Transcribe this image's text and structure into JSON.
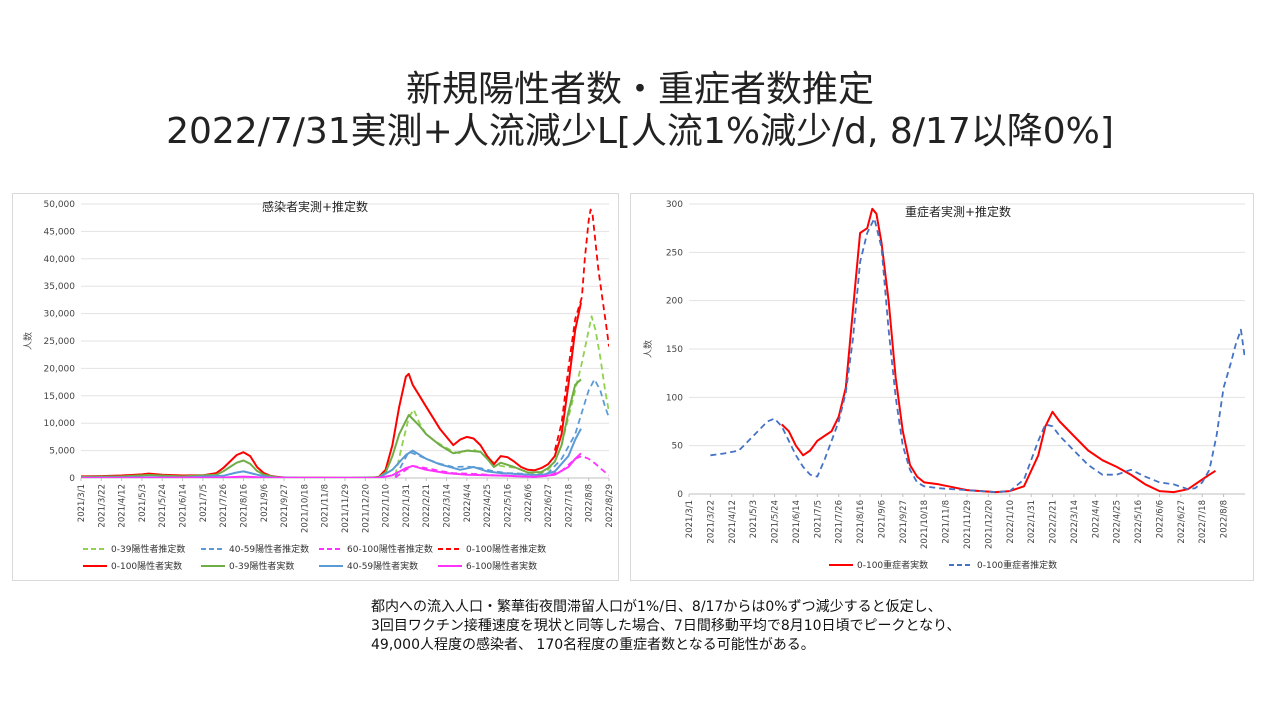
{
  "title_line1": "新規陽性者数・重症者数推定",
  "title_line2": "2022/7/31実測+人流減少L[人流1%減少/d, 8/17以降0%]",
  "note_lines": [
    "都内への流入人口・繁華街夜間滞留人口が1%/日、8/17からは0%ずつ減少すると仮定し、",
    "3回目ワクチン接種速度を現状と同等した場合、7日間移動平均で8月10日頃でピークとなり、",
    "49,000人程度の感染者、 170名程度の重症者数となる可能性がある。"
  ],
  "chart_data": [
    {
      "type": "line",
      "title": "感染者実測+推定数",
      "ylabel": "人数",
      "ylim": [
        0,
        50000
      ],
      "yticks": [
        "0",
        "5,000",
        "10,000",
        "15,000",
        "20,000",
        "25,000",
        "30,000",
        "35,000",
        "40,000",
        "45,000",
        "50,000"
      ],
      "xlim": [
        "2021/3/1",
        "2022/8/29"
      ],
      "xticks": [
        "2021/3/1",
        "2021/3/22",
        "2021/4/12",
        "2021/5/3",
        "2021/5/24",
        "2021/6/14",
        "2021/7/5",
        "2021/7/26",
        "2021/8/16",
        "2021/9/6",
        "2021/9/27",
        "2021/10/18",
        "2021/11/8",
        "2021/11/29",
        "2021/12/20",
        "2022/1/10",
        "2022/1/31",
        "2022/2/21",
        "2022/3/14",
        "2022/4/4",
        "2022/4/25",
        "2022/5/16",
        "2022/6/6",
        "2022/6/27",
        "2022/7/18",
        "2022/8/8",
        "2022/8/29"
      ],
      "series": [
        {
          "name": "0-39陽性者推定数",
          "color": "#92d050",
          "dash": true,
          "x": [
            "2022/1/20",
            "2022/1/27",
            "2022/2/3",
            "2022/2/8",
            "2022/2/14",
            "2022/2/21",
            "2022/2/28",
            "2022/3/7",
            "2022/3/14",
            "2022/3/21",
            "2022/3/28",
            "2022/4/4",
            "2022/4/11",
            "2022/4/18",
            "2022/4/25",
            "2022/5/2",
            "2022/5/9",
            "2022/5/16",
            "2022/5/23",
            "2022/5/30",
            "2022/6/6",
            "2022/6/13",
            "2022/6/20",
            "2022/6/27",
            "2022/7/4",
            "2022/7/11",
            "2022/7/18",
            "2022/7/25",
            "2022/8/1",
            "2022/8/8",
            "2022/8/11",
            "2022/8/15",
            "2022/8/20",
            "2022/8/25",
            "2022/8/29"
          ],
          "values": [
            500,
            6000,
            11000,
            12500,
            10000,
            8000,
            7000,
            6200,
            5500,
            4800,
            4500,
            5000,
            5200,
            4600,
            3800,
            2800,
            2200,
            2000,
            1900,
            1500,
            1000,
            800,
            900,
            1500,
            3000,
            6000,
            11000,
            16000,
            21000,
            27000,
            29500,
            27000,
            22000,
            16000,
            12000
          ]
        },
        {
          "name": "40-59陽性者推定数",
          "color": "#5b9bd5",
          "dash": true,
          "x": [
            "2022/1/20",
            "2022/1/27",
            "2022/2/3",
            "2022/2/10",
            "2022/2/21",
            "2022/3/7",
            "2022/3/21",
            "2022/4/4",
            "2022/4/18",
            "2022/5/2",
            "2022/5/16",
            "2022/5/30",
            "2022/6/13",
            "2022/6/27",
            "2022/7/11",
            "2022/7/25",
            "2022/8/1",
            "2022/8/8",
            "2022/8/14",
            "2022/8/20",
            "2022/8/25",
            "2022/8/29"
          ],
          "values": [
            200,
            2500,
            4800,
            4300,
            3500,
            2600,
            2000,
            2100,
            1800,
            1200,
            900,
            800,
            500,
            900,
            3500,
            8000,
            12000,
            16000,
            18000,
            16000,
            13000,
            11000
          ]
        },
        {
          "name": "60-100陽性者推定数",
          "color": "#ff33ff",
          "dash": true,
          "x": [
            "2022/1/20",
            "2022/1/31",
            "2022/2/7",
            "2022/2/21",
            "2022/3/7",
            "2022/3/21",
            "2022/4/4",
            "2022/4/18",
            "2022/5/2",
            "2022/5/16",
            "2022/5/30",
            "2022/6/13",
            "2022/6/27",
            "2022/7/11",
            "2022/7/25",
            "2022/8/1",
            "2022/8/8",
            "2022/8/15",
            "2022/8/22",
            "2022/8/29"
          ],
          "values": [
            100,
            1500,
            2200,
            1800,
            1300,
            900,
            800,
            700,
            500,
            400,
            300,
            200,
            400,
            1300,
            3500,
            4000,
            3500,
            2600,
            1500,
            500
          ]
        },
        {
          "name": "0-100陽性者推定数",
          "color": "#ff0000",
          "dash": true,
          "x": [
            "2022/7/4",
            "2022/7/11",
            "2022/7/18",
            "2022/7/25",
            "2022/8/1",
            "2022/8/4",
            "2022/8/8",
            "2022/8/10",
            "2022/8/12",
            "2022/8/15",
            "2022/8/18",
            "2022/8/22",
            "2022/8/26",
            "2022/8/29"
          ],
          "values": [
            5000,
            10000,
            20000,
            29000,
            33000,
            40000,
            47000,
            49000,
            48000,
            43000,
            38000,
            33000,
            28000,
            24000
          ]
        },
        {
          "name": "0-100陽性者実数",
          "color": "#ff0000",
          "dash": false,
          "x": [
            "2021/3/1",
            "2021/3/22",
            "2021/4/12",
            "2021/5/3",
            "2021/5/10",
            "2021/5/24",
            "2021/6/14",
            "2021/7/5",
            "2021/7/19",
            "2021/7/26",
            "2021/8/2",
            "2021/8/9",
            "2021/8/16",
            "2021/8/23",
            "2021/8/30",
            "2021/9/6",
            "2021/9/13",
            "2021/9/20",
            "2021/9/27",
            "2021/10/11",
            "2021/11/1",
            "2021/12/1",
            "2021/12/27",
            "2022/1/3",
            "2022/1/10",
            "2022/1/17",
            "2022/1/24",
            "2022/1/31",
            "2022/2/3",
            "2022/2/7",
            "2022/2/14",
            "2022/2/21",
            "2022/2/28",
            "2022/3/7",
            "2022/3/14",
            "2022/3/21",
            "2022/3/28",
            "2022/4/4",
            "2022/4/11",
            "2022/4/18",
            "2022/4/25",
            "2022/5/2",
            "2022/5/9",
            "2022/5/16",
            "2022/5/23",
            "2022/5/30",
            "2022/6/6",
            "2022/6/13",
            "2022/6/20",
            "2022/6/27",
            "2022/7/4",
            "2022/7/11",
            "2022/7/18",
            "2022/7/25",
            "2022/7/31"
          ],
          "values": [
            300,
            350,
            450,
            650,
            800,
            600,
            450,
            500,
            900,
            1800,
            3000,
            4200,
            4700,
            4000,
            2000,
            900,
            400,
            200,
            100,
            50,
            30,
            20,
            50,
            200,
            1500,
            6000,
            13000,
            18500,
            19000,
            17000,
            15000,
            13000,
            11000,
            9000,
            7500,
            6000,
            7000,
            7500,
            7200,
            6000,
            4000,
            2500,
            4000,
            3800,
            3000,
            2000,
            1500,
            1400,
            1800,
            2500,
            4000,
            8000,
            17000,
            27000,
            32000
          ]
        },
        {
          "name": "0-39陽性者実数",
          "color": "#70ad47",
          "dash": false,
          "x": [
            "2021/3/1",
            "2021/4/12",
            "2021/5/10",
            "2021/6/14",
            "2021/7/19",
            "2021/7/26",
            "2021/8/2",
            "2021/8/9",
            "2021/8/16",
            "2021/8/23",
            "2021/8/30",
            "2021/9/6",
            "2021/9/20",
            "2021/10/11",
            "2021/12/1",
            "2022/1/3",
            "2022/1/10",
            "2022/1/17",
            "2022/1/24",
            "2022/2/3",
            "2022/2/14",
            "2022/2/21",
            "2022/3/7",
            "2022/3/21",
            "2022/4/4",
            "2022/4/18",
            "2022/4/25",
            "2022/5/2",
            "2022/5/9",
            "2022/5/23",
            "2022/6/6",
            "2022/6/20",
            "2022/6/27",
            "2022/7/4",
            "2022/7/11",
            "2022/7/18",
            "2022/7/25",
            "2022/7/31"
          ],
          "values": [
            200,
            300,
            550,
            300,
            600,
            1200,
            2000,
            2800,
            3200,
            2600,
            1300,
            600,
            150,
            30,
            15,
            150,
            1000,
            4000,
            8000,
            11500,
            9500,
            8000,
            6000,
            4500,
            5000,
            4800,
            3500,
            2000,
            2800,
            2000,
            1000,
            1100,
            1800,
            3000,
            6000,
            12000,
            17000,
            18000
          ]
        },
        {
          "name": "40-59陽性者実数",
          "color": "#5b9bd5",
          "dash": false,
          "x": [
            "2021/3/1",
            "2021/5/10",
            "2021/6/14",
            "2021/7/26",
            "2021/8/9",
            "2021/8/16",
            "2021/8/30",
            "2021/9/13",
            "2021/10/11",
            "2022/1/3",
            "2022/1/17",
            "2022/1/31",
            "2022/2/7",
            "2022/2/21",
            "2022/3/7",
            "2022/3/28",
            "2022/4/11",
            "2022/4/25",
            "2022/5/9",
            "2022/5/30",
            "2022/6/20",
            "2022/7/4",
            "2022/7/18",
            "2022/7/25",
            "2022/7/31"
          ],
          "values": [
            50,
            150,
            100,
            400,
            1000,
            1200,
            600,
            100,
            20,
            50,
            1500,
            4200,
            5000,
            3500,
            2500,
            1500,
            2000,
            1200,
            900,
            700,
            500,
            1200,
            4000,
            7000,
            9000
          ]
        },
        {
          "name": "6-100陽性者実数",
          "color": "#ff33ff",
          "dash": false,
          "x": [
            "2021/3/1",
            "2021/5/10",
            "2021/7/26",
            "2021/8/16",
            "2021/9/6",
            "2021/10/11",
            "2022/1/3",
            "2022/1/17",
            "2022/1/31",
            "2022/2/7",
            "2022/2/21",
            "2022/3/14",
            "2022/4/4",
            "2022/4/25",
            "2022/5/16",
            "2022/6/13",
            "2022/7/4",
            "2022/7/18",
            "2022/7/25",
            "2022/7/31"
          ],
          "values": [
            20,
            40,
            100,
            250,
            80,
            10,
            20,
            500,
            1800,
            2200,
            1500,
            900,
            600,
            500,
            400,
            200,
            600,
            2000,
            3500,
            4500
          ]
        }
      ]
    },
    {
      "type": "line",
      "title": "重症者実測+推定数",
      "ylabel": "人数",
      "ylim": [
        0,
        300
      ],
      "yticks": [
        "0",
        "50",
        "100",
        "150",
        "200",
        "250",
        "300"
      ],
      "xlim": [
        "2021/3/1",
        "2022/8/29"
      ],
      "xticks": [
        "2021/3/1",
        "2021/3/22",
        "2021/4/12",
        "2021/5/3",
        "2021/5/24",
        "2021/6/14",
        "2021/7/5",
        "2021/7/26",
        "2021/8/16",
        "2021/9/6",
        "2021/9/27",
        "2021/10/18",
        "2021/11/8",
        "2021/11/29",
        "2021/12/20",
        "2022/1/10",
        "2022/1/31",
        "2022/2/21",
        "2022/3/14",
        "2022/4/4",
        "2022/4/25",
        "2022/5/16",
        "2022/6/6",
        "2022/6/27",
        "2022/7/18",
        "2022/8/8"
      ],
      "series": [
        {
          "name": "0-100重症者実数",
          "color": "#ff0000",
          "dash": false,
          "x": [
            "2021/5/31",
            "2021/6/7",
            "2021/6/14",
            "2021/6/21",
            "2021/6/28",
            "2021/7/5",
            "2021/7/12",
            "2021/7/19",
            "2021/7/26",
            "2021/8/2",
            "2021/8/9",
            "2021/8/16",
            "2021/8/23",
            "2021/8/28",
            "2021/9/1",
            "2021/9/6",
            "2021/9/13",
            "2021/9/20",
            "2021/9/27",
            "2021/10/4",
            "2021/10/11",
            "2021/10/18",
            "2021/11/1",
            "2021/11/15",
            "2021/11/29",
            "2021/12/13",
            "2021/12/27",
            "2022/1/10",
            "2022/1/24",
            "2022/2/7",
            "2022/2/14",
            "2022/2/21",
            "2022/2/28",
            "2022/3/14",
            "2022/3/28",
            "2022/4/11",
            "2022/4/25",
            "2022/5/9",
            "2022/5/23",
            "2022/6/6",
            "2022/6/20",
            "2022/7/4",
            "2022/7/11",
            "2022/7/18",
            "2022/7/25",
            "2022/7/31"
          ],
          "values": [
            72,
            65,
            50,
            40,
            45,
            55,
            60,
            65,
            80,
            110,
            190,
            270,
            275,
            295,
            290,
            260,
            200,
            120,
            65,
            30,
            18,
            12,
            10,
            7,
            4,
            3,
            2,
            3,
            8,
            40,
            70,
            85,
            75,
            60,
            45,
            35,
            28,
            20,
            10,
            3,
            2,
            5,
            10,
            15,
            20,
            24
          ]
        },
        {
          "name": "0-100重症者推定数",
          "color": "#4472c4",
          "dash": true,
          "x": [
            "2021/3/22",
            "2021/4/5",
            "2021/4/19",
            "2021/5/3",
            "2021/5/17",
            "2021/5/24",
            "2021/5/31",
            "2021/6/7",
            "2021/6/14",
            "2021/6/21",
            "2021/6/28",
            "2021/7/5",
            "2021/7/12",
            "2021/7/19",
            "2021/7/26",
            "2021/8/2",
            "2021/8/9",
            "2021/8/16",
            "2021/8/23",
            "2021/8/30",
            "2021/9/6",
            "2021/9/13",
            "2021/9/20",
            "2021/9/27",
            "2021/10/4",
            "2021/10/11",
            "2021/10/18",
            "2021/11/1",
            "2021/11/15",
            "2021/11/29",
            "2021/12/13",
            "2021/12/27",
            "2022/1/10",
            "2022/1/24",
            "2022/2/7",
            "2022/2/14",
            "2022/2/21",
            "2022/2/28",
            "2022/3/14",
            "2022/3/28",
            "2022/4/11",
            "2022/4/25",
            "2022/5/9",
            "2022/5/23",
            "2022/6/6",
            "2022/6/20",
            "2022/7/4",
            "2022/7/11",
            "2022/7/18",
            "2022/7/25",
            "2022/8/1",
            "2022/8/8",
            "2022/8/15",
            "2022/8/20",
            "2022/8/25",
            "2022/8/29"
          ],
          "values": [
            40,
            42,
            45,
            60,
            75,
            78,
            70,
            55,
            40,
            28,
            20,
            18,
            35,
            55,
            75,
            105,
            160,
            240,
            270,
            285,
            255,
            170,
            100,
            50,
            25,
            12,
            8,
            6,
            5,
            4,
            3,
            2,
            3,
            15,
            55,
            72,
            70,
            60,
            45,
            30,
            20,
            20,
            25,
            18,
            12,
            10,
            5,
            6,
            12,
            25,
            60,
            110,
            135,
            155,
            170,
            140
          ]
        }
      ]
    }
  ]
}
